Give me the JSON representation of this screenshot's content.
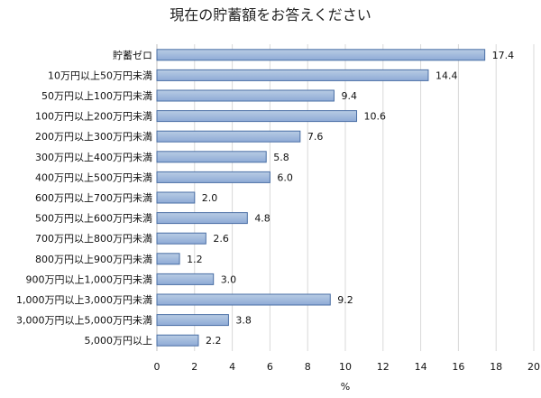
{
  "chart_data": {
    "type": "bar",
    "orientation": "horizontal",
    "title": "現在の貯蓄額をお答えください",
    "xlabel": "%",
    "ylabel": "",
    "categories": [
      "貯蓄ゼロ",
      "10万円以上50万円未満",
      "50万円以上100万円未満",
      "100万円以上200万円未満",
      "200万円以上300万円未満",
      "300万円以上400万円未満",
      "400万円以上500万円未満",
      "600万円以上700万円未満",
      "500万円以上600万円未満",
      "700万円以上800万円未満",
      "800万円以上900万円未満",
      "900万円以上1,000万円未満",
      "1,000万円以上3,000万円未満",
      "3,000万円以上5,000万円未満",
      "5,000万円以上"
    ],
    "values": [
      17.4,
      14.4,
      9.4,
      10.6,
      7.6,
      5.8,
      6.0,
      2.0,
      4.8,
      2.6,
      1.2,
      3.0,
      9.2,
      3.8,
      2.2
    ],
    "value_labels": [
      "17.4",
      "14.4",
      "9.4",
      "10.6",
      "7.6",
      "5.8",
      "6.0",
      "2.0",
      "4.8",
      "2.6",
      "1.2",
      "3.0",
      "9.2",
      "3.8",
      "2.2"
    ],
    "xlim": [
      0,
      20
    ],
    "xticks": [
      "0",
      "2",
      "4",
      "6",
      "8",
      "10",
      "12",
      "14",
      "16",
      "18",
      "20"
    ],
    "grid": true,
    "legend": "none",
    "colors": {
      "bar_fill_top": "#b8cce4",
      "bar_fill_bottom": "#8eaad6",
      "bar_stroke": "#4a6fa5",
      "gridline": "#d9d9d9"
    }
  }
}
